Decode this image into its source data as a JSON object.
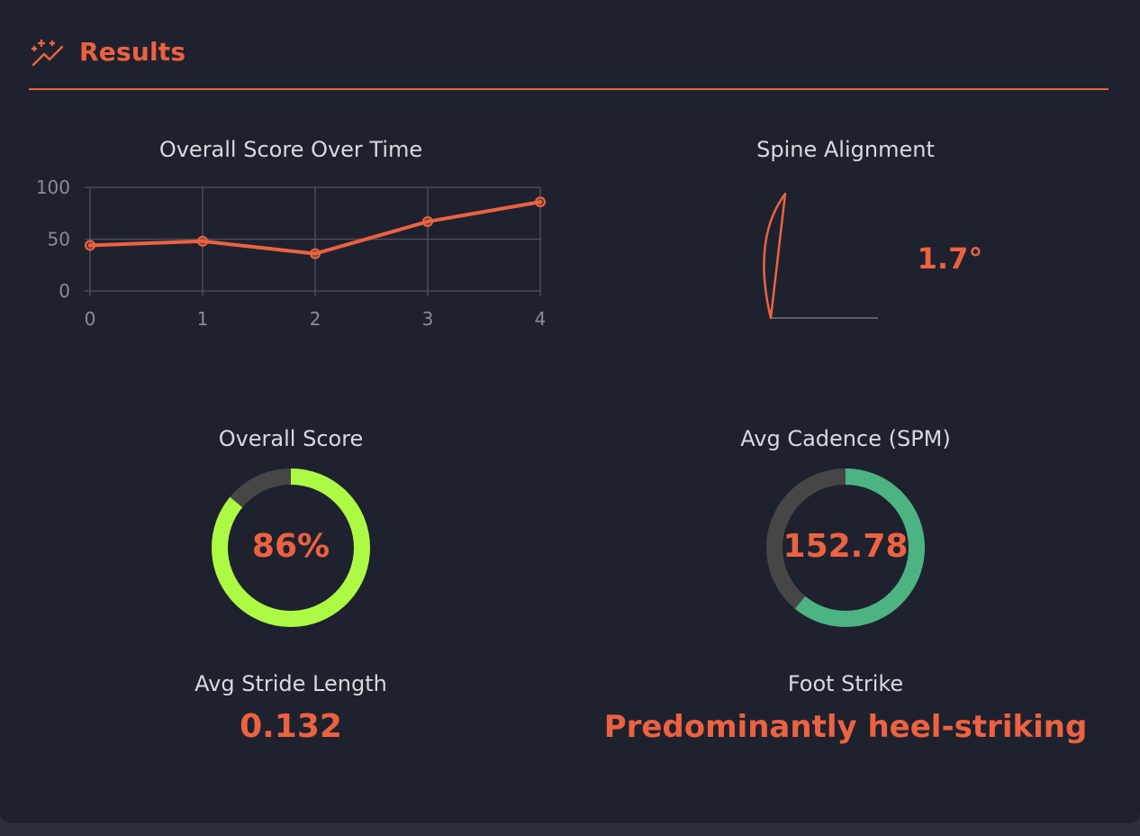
{
  "header": {
    "title": "Results",
    "icon": "sparkles-trend-icon",
    "accent_color": "#ed6240"
  },
  "score_chart": {
    "title": "Overall Score Over Time"
  },
  "spine": {
    "title": "Spine Alignment",
    "value": "1.7°",
    "angle_deg": 1.7
  },
  "overall_score": {
    "title": "Overall Score",
    "value_label": "86%",
    "fraction": 0.86,
    "ring_color": "#adfa45",
    "track_color": "#464646"
  },
  "cadence": {
    "title": "Avg Cadence (SPM)",
    "value_label": "152.78",
    "fraction": 0.61,
    "ring_color": "#4cb383",
    "track_color": "#464646"
  },
  "stride": {
    "title": "Avg Stride Length",
    "value": "0.132"
  },
  "foot_strike": {
    "title": "Foot Strike",
    "value": "Predominantly heel-striking"
  },
  "chart_data": {
    "type": "line",
    "title": "Overall Score Over Time",
    "x": [
      0,
      1,
      2,
      3,
      4
    ],
    "series": [
      {
        "values": [
          44,
          48,
          36,
          67,
          86
        ],
        "color": "#ed6240"
      }
    ],
    "xlim": [
      0,
      4
    ],
    "ylim": [
      0,
      100
    ],
    "yticks": [
      0,
      50,
      100
    ],
    "xticks": [
      0,
      1,
      2,
      3,
      4
    ],
    "grid": true,
    "xlabel": "",
    "ylabel": ""
  }
}
